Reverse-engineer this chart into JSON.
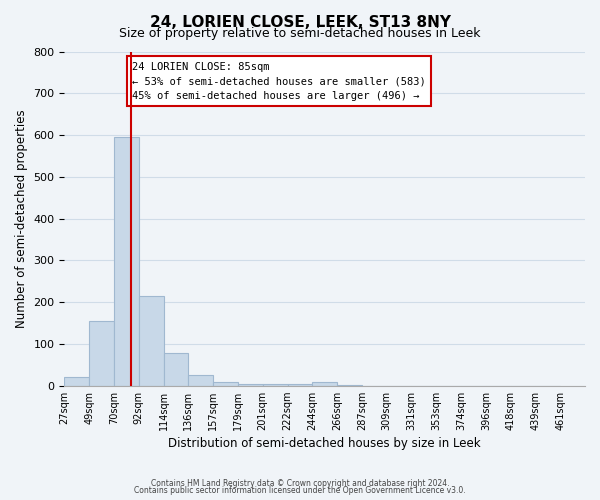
{
  "title": "24, LORIEN CLOSE, LEEK, ST13 8NY",
  "subtitle": "Size of property relative to semi-detached houses in Leek",
  "xlabel": "Distribution of semi-detached houses by size in Leek",
  "ylabel": "Number of semi-detached properties",
  "footer_line1": "Contains HM Land Registry data © Crown copyright and database right 2024.",
  "footer_line2": "Contains public sector information licensed under the Open Government Licence v3.0.",
  "bin_labels": [
    "27sqm",
    "49sqm",
    "70sqm",
    "92sqm",
    "114sqm",
    "136sqm",
    "157sqm",
    "179sqm",
    "201sqm",
    "222sqm",
    "244sqm",
    "266sqm",
    "287sqm",
    "309sqm",
    "331sqm",
    "353sqm",
    "374sqm",
    "396sqm",
    "418sqm",
    "439sqm",
    "461sqm"
  ],
  "bar_values": [
    20,
    155,
    595,
    215,
    78,
    25,
    10,
    5,
    5,
    5,
    8,
    2,
    0,
    0,
    0,
    0,
    0,
    0,
    0,
    0
  ],
  "bar_color": "#c8d8e8",
  "bar_edge_color": "#a0b8d0",
  "grid_color": "#d0dce8",
  "background_color": "#f0f4f8",
  "marker_line_color": "#cc0000",
  "marker_sqm": 85,
  "bin_start_sqm": [
    27,
    49,
    70,
    92,
    114,
    136,
    157,
    179,
    201,
    222,
    244,
    266,
    287,
    309,
    331,
    353,
    374,
    396,
    418,
    439,
    461
  ],
  "annotation_title": "24 LORIEN CLOSE: 85sqm",
  "annotation_line1": "← 53% of semi-detached houses are smaller (583)",
  "annotation_line2": "45% of semi-detached houses are larger (496) →",
  "annotation_box_color": "#ffffff",
  "annotation_border_color": "#cc0000",
  "ylim": [
    0,
    800
  ],
  "yticks": [
    0,
    100,
    200,
    300,
    400,
    500,
    600,
    700,
    800
  ]
}
